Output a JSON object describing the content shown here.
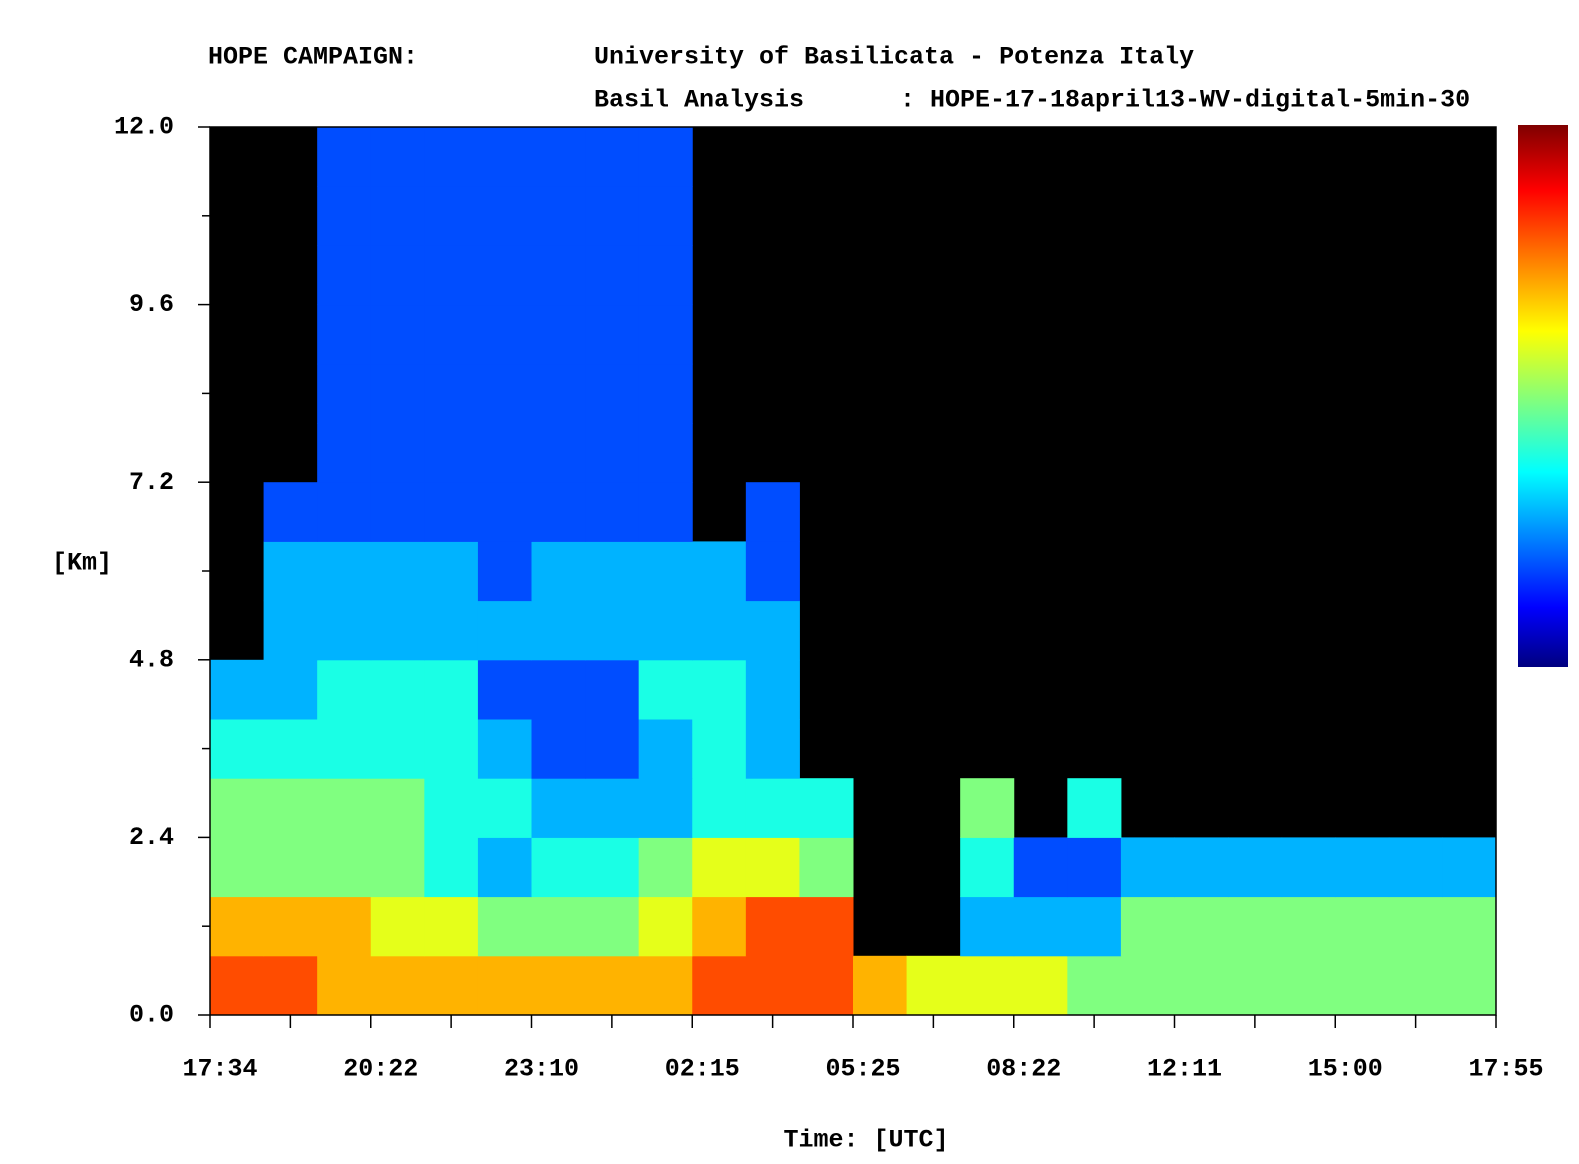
{
  "chart_data": {
    "type": "heatmap",
    "title": "HOPE CAMPAIGN:",
    "subtitle": "University of Basilicata - Potenza Italy",
    "analysis_label": "Basil Analysis",
    "analysis_file": ": HOPE-17-18april13-WV-digital-5min-30",
    "y_label": "[Km]",
    "x_label": "Time: [UTC]",
    "xticks": [
      "17:34",
      "20:22",
      "23:10",
      "02:15",
      "05:25",
      "08:22",
      "12:11",
      "15:00",
      "17:55"
    ],
    "ylim": [
      0,
      12
    ],
    "yticks": [
      {
        "value": 0,
        "label": "0.0"
      },
      2.4,
      4.8,
      7.2,
      9.6,
      {
        "value": 12,
        "label": "12.0"
      }
    ],
    "yminor_ticks": [
      1.2,
      3.6,
      6,
      8.4,
      10.8
    ],
    "zlim": [
      0,
      10
    ],
    "colorscale": "jet",
    "missing_color": "#000000",
    "z": [
      [
        8,
        8,
        7,
        7,
        7,
        7,
        7,
        7,
        7,
        8,
        8,
        8,
        7,
        6,
        6,
        6,
        5,
        5,
        5,
        5,
        5,
        5,
        5,
        5
      ],
      [
        7,
        7,
        7,
        6,
        6,
        5,
        5,
        5,
        6,
        7,
        8,
        8,
        null,
        null,
        3,
        3,
        3,
        5,
        5,
        5,
        5,
        5,
        5,
        5
      ],
      [
        5,
        5,
        5,
        5,
        4,
        3,
        4,
        4,
        5,
        6,
        6,
        5,
        null,
        null,
        4,
        2,
        2,
        3,
        3,
        3,
        3,
        3,
        3,
        3
      ],
      [
        5,
        5,
        5,
        5,
        4,
        4,
        3,
        3,
        3,
        4,
        4,
        4,
        null,
        null,
        5,
        null,
        4,
        null,
        null,
        null,
        null,
        null,
        null,
        null
      ],
      [
        4,
        4,
        4,
        4,
        4,
        3,
        2,
        2,
        3,
        4,
        3,
        null,
        null,
        null,
        null,
        null,
        null,
        null,
        null,
        null,
        null,
        null,
        null,
        null
      ],
      [
        3,
        3,
        4,
        4,
        4,
        2,
        2,
        2,
        4,
        4,
        3,
        null,
        null,
        null,
        null,
        null,
        null,
        null,
        null,
        null,
        null,
        null,
        null,
        null
      ],
      [
        null,
        3,
        3,
        3,
        3,
        3,
        3,
        3,
        3,
        3,
        3,
        null,
        null,
        null,
        null,
        null,
        null,
        null,
        null,
        null,
        null,
        null,
        null,
        null
      ],
      [
        null,
        3,
        3,
        3,
        3,
        2,
        3,
        3,
        3,
        3,
        2,
        null,
        null,
        null,
        null,
        null,
        null,
        null,
        null,
        null,
        null,
        null,
        null,
        null
      ],
      [
        null,
        2,
        2,
        2,
        2,
        2,
        2,
        2,
        2,
        null,
        2,
        null,
        null,
        null,
        null,
        null,
        null,
        null,
        null,
        null,
        null,
        null,
        null,
        null
      ],
      [
        null,
        null,
        2,
        2,
        2,
        2,
        2,
        2,
        2,
        null,
        null,
        null,
        null,
        null,
        null,
        null,
        null,
        null,
        null,
        null,
        null,
        null,
        null,
        null
      ],
      [
        null,
        null,
        2,
        2,
        2,
        2,
        2,
        2,
        2,
        null,
        null,
        null,
        null,
        null,
        null,
        null,
        null,
        null,
        null,
        null,
        null,
        null,
        null,
        null
      ],
      [
        null,
        null,
        2,
        2,
        2,
        2,
        2,
        2,
        2,
        null,
        null,
        null,
        null,
        null,
        null,
        null,
        null,
        null,
        null,
        null,
        null,
        null,
        null,
        null
      ],
      [
        null,
        null,
        2,
        2,
        2,
        2,
        2,
        2,
        2,
        null,
        null,
        null,
        null,
        null,
        null,
        null,
        null,
        null,
        null,
        null,
        null,
        null,
        null,
        null
      ],
      [
        null,
        null,
        2,
        2,
        2,
        2,
        2,
        2,
        2,
        null,
        null,
        null,
        null,
        null,
        null,
        null,
        null,
        null,
        null,
        null,
        null,
        null,
        null,
        null
      ],
      [
        null,
        null,
        2,
        2,
        2,
        2,
        2,
        2,
        2,
        null,
        null,
        null,
        null,
        null,
        null,
        null,
        null,
        null,
        null,
        null,
        null,
        null,
        null,
        null
      ]
    ]
  }
}
